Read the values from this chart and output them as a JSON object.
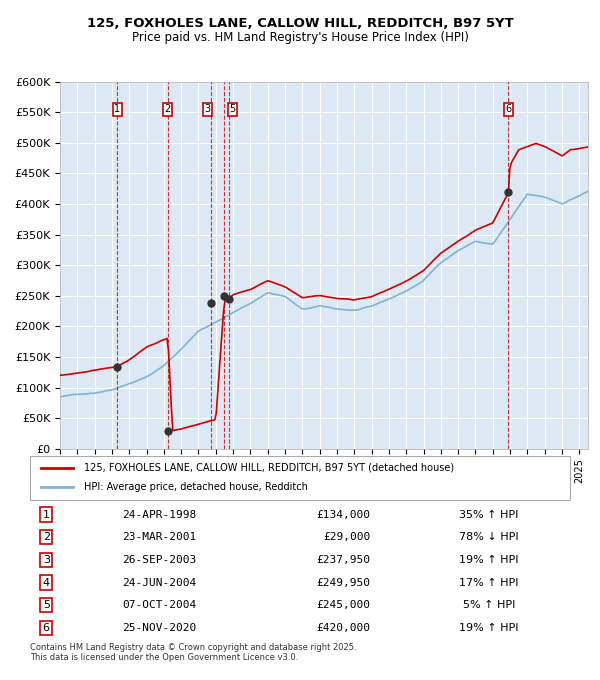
{
  "title_line1": "125, FOXHOLES LANE, CALLOW HILL, REDDITCH, B97 5YT",
  "title_line2": "Price paid vs. HM Land Registry's House Price Index (HPI)",
  "xlabel": "",
  "ylabel": "",
  "ylim": [
    0,
    600000
  ],
  "yticks": [
    0,
    50000,
    100000,
    150000,
    200000,
    250000,
    300000,
    350000,
    400000,
    450000,
    500000,
    550000,
    600000
  ],
  "ytick_labels": [
    "£0",
    "£50K",
    "£100K",
    "£150K",
    "£200K",
    "£250K",
    "£300K",
    "£350K",
    "£400K",
    "£450K",
    "£500K",
    "£550K",
    "£600K"
  ],
  "bg_color": "#dce9f5",
  "plot_bg_color": "#dce9f5",
  "grid_color": "#ffffff",
  "hpi_color": "#7fb3d3",
  "price_color": "#cc0000",
  "transaction_color": "#cc0000",
  "dashed_line_color": "#cc0000",
  "marker_color": "#333333",
  "transactions": [
    {
      "id": 1,
      "date_label": "24-APR-1998",
      "date_x": 1998.31,
      "price": 134000,
      "hpi_pct": "35% ↑ HPI"
    },
    {
      "id": 2,
      "date_label": "23-MAR-2001",
      "date_x": 2001.23,
      "price": 29000,
      "hpi_pct": "78% ↓ HPI"
    },
    {
      "id": 3,
      "date_label": "26-SEP-2003",
      "date_x": 2003.74,
      "price": 237950,
      "hpi_pct": "19% ↑ HPI"
    },
    {
      "id": 4,
      "date_label": "24-JUN-2004",
      "date_x": 2004.48,
      "price": 249950,
      "hpi_pct": "17% ↑ HPI"
    },
    {
      "id": 5,
      "date_label": "07-OCT-2004",
      "date_x": 2004.77,
      "price": 245000,
      "hpi_pct": "5% ↑ HPI"
    },
    {
      "id": 6,
      "date_label": "25-NOV-2020",
      "date_x": 2020.9,
      "price": 420000,
      "hpi_pct": "19% ↑ HPI"
    }
  ],
  "legend_label_price": "125, FOXHOLES LANE, CALLOW HILL, REDDITCH, B97 5YT (detached house)",
  "legend_label_hpi": "HPI: Average price, detached house, Redditch",
  "footnote": "Contains HM Land Registry data © Crown copyright and database right 2025.\nThis data is licensed under the Open Government Licence v3.0.",
  "xmin": 1995,
  "xmax": 2025.5
}
